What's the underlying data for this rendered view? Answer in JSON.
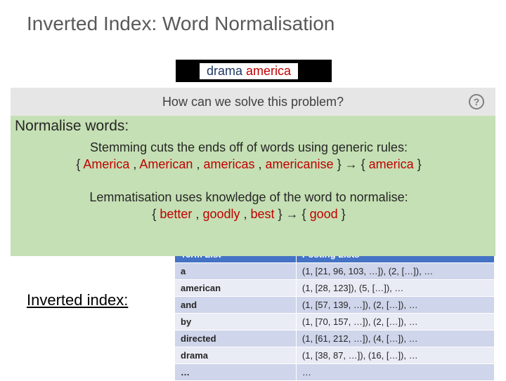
{
  "title": "Inverted Index: Word Normalisation",
  "search": {
    "w1": "drama",
    "w2": "america"
  },
  "question": "How can we solve this problem?",
  "help_glyph": "?",
  "normalise_label": "Normalise words:",
  "stem": {
    "line1": "Stemming cuts the ends off of words using generic rules:",
    "open": "{ ",
    "t1": "America",
    "t2": "American",
    "t3": "americas",
    "t4": "americanise",
    "mid": " } → { ",
    "out": "america",
    "close": " }",
    "sep": " , "
  },
  "lemma": {
    "line1": "Lemmatisation uses knowledge of the word to normalise:",
    "open": "{ ",
    "t1": "better",
    "t2": "goodly",
    "t3": "best",
    "mid": " } → { ",
    "out": "good",
    "close": " }",
    "sep": " , "
  },
  "inverted_label": "Inverted index:",
  "table": {
    "h1": "Term List",
    "h2": "Posting Lists",
    "rows": [
      {
        "term": "a",
        "post": "(1, [21, 96, 103, …]), (2, […]), …"
      },
      {
        "term": "american",
        "post": "(1, [28, 123]), (5, […]), …"
      },
      {
        "term": "and",
        "post": "(1, [57, 139, …]), (2, […]), …"
      },
      {
        "term": "by",
        "post": "(1, [70, 157, …]), (2, […]), …"
      },
      {
        "term": "directed",
        "post": "(1, [61, 212, …]), (4, […]), …"
      },
      {
        "term": "drama",
        "post": "(1, [38, 87, …]), (16, […]), …"
      },
      {
        "term": "…",
        "post": "…"
      }
    ]
  },
  "colors": {
    "title_text": "#595959",
    "accent_red": "#c00000",
    "accent_darkblue": "#1f3864",
    "question_bg": "#e7e6e6",
    "explain_bg": "#c5e0b4",
    "table_header_bg": "#4472c4",
    "table_row_odd": "#cfd5ea",
    "table_row_even": "#e9ebf5"
  }
}
